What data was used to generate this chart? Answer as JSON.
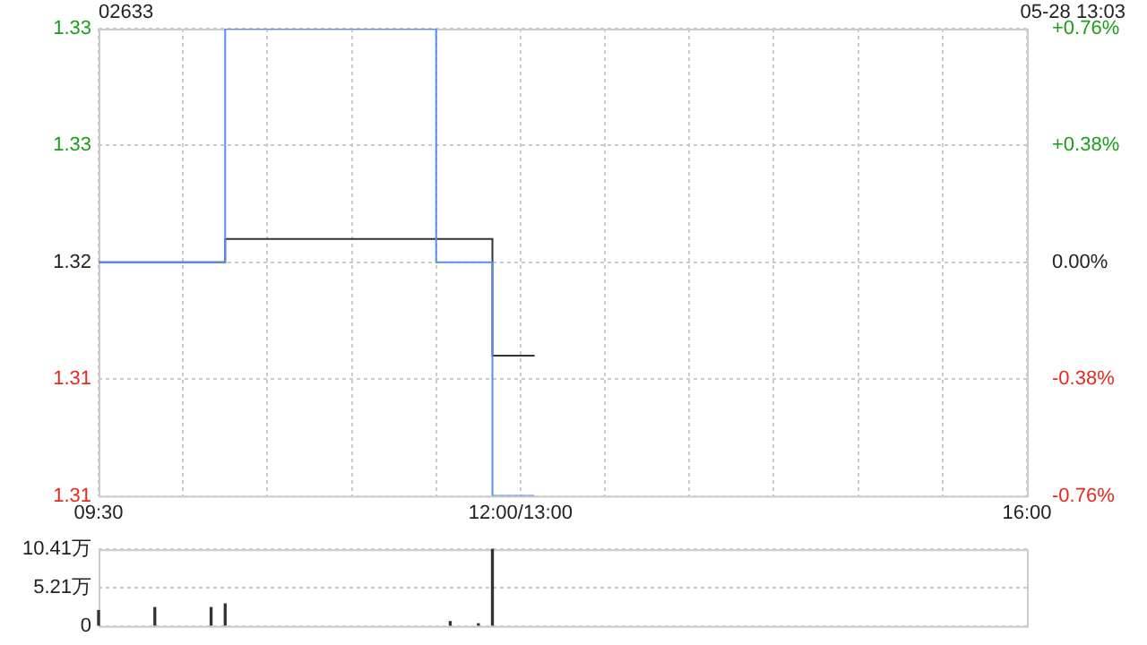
{
  "chart_data": [
    {
      "type": "step",
      "title": "02633",
      "annotations": [
        "05-28 13:03"
      ],
      "categories": [
        "09:30",
        null,
        null,
        null,
        null,
        null,
        null,
        null,
        null,
        null,
        null,
        null,
        null,
        null,
        null,
        null,
        null,
        null,
        null,
        null,
        null,
        null,
        null,
        null,
        null,
        null,
        null,
        null,
        null,
        null,
        "12:00/13:00",
        null,
        null,
        null,
        null,
        null,
        null,
        null,
        null,
        null,
        null,
        null,
        null,
        null,
        null,
        null,
        null,
        null,
        null,
        null,
        null,
        null,
        null,
        null,
        null,
        null,
        null,
        null,
        null,
        null,
        null,
        null,
        null,
        null,
        null,
        null,
        "16:00"
      ],
      "series": [
        {
          "color": "#5b8ee6",
          "values": [
            1.32,
            null,
            null,
            null,
            null,
            null,
            null,
            null,
            null,
            1.33,
            null,
            null,
            null,
            null,
            null,
            null,
            null,
            null,
            null,
            null,
            null,
            null,
            null,
            null,
            1.32,
            null,
            null,
            null,
            1.31,
            null,
            null,
            1.31,
            null,
            null,
            null,
            null,
            null,
            null,
            null,
            null,
            null,
            null,
            null,
            null,
            null,
            null,
            null,
            null,
            null,
            null,
            null,
            null,
            null,
            null,
            null,
            null,
            null,
            null,
            null,
            null,
            null,
            null,
            null,
            null,
            null,
            null,
            null
          ]
        },
        {
          "color": "#333333",
          "values": [
            1.32,
            null,
            null,
            null,
            null,
            null,
            null,
            null,
            null,
            1.321,
            null,
            null,
            null,
            null,
            null,
            null,
            null,
            null,
            null,
            null,
            null,
            null,
            null,
            null,
            null,
            null,
            null,
            null,
            1.316,
            null,
            null,
            1.316,
            null,
            null,
            null,
            null,
            null,
            null,
            null,
            null,
            null,
            null,
            null,
            null,
            null,
            null,
            null,
            null,
            null,
            null,
            null,
            null,
            null,
            null,
            null,
            null,
            null,
            null,
            null,
            null,
            null,
            null,
            null,
            null,
            null,
            null,
            null
          ]
        }
      ],
      "ylim": [
        1.31,
        1.33
      ],
      "yticks": [
        {
          "value": 1.31,
          "label": "1.31"
        },
        {
          "value": 1.315,
          "label": "1.31"
        },
        {
          "value": 1.32,
          "label": "1.32"
        },
        {
          "value": 1.325,
          "label": "1.33"
        },
        {
          "value": 1.33,
          "label": "1.33"
        }
      ],
      "y2lim": [
        -0.76,
        0.76
      ],
      "y2ticks": [
        {
          "value": -0.76,
          "label": "-0.76%"
        },
        {
          "value": -0.38,
          "label": "-0.38%"
        },
        {
          "value": 0,
          "label": "0.00%"
        },
        {
          "value": 0.38,
          "label": "+0.38%"
        },
        {
          "value": 0.76,
          "label": "+0.76%"
        }
      ],
      "grid": true
    },
    {
      "type": "bar",
      "categories": [
        null,
        null,
        null,
        null,
        null,
        null,
        null,
        null,
        null,
        null,
        null,
        null,
        null,
        null,
        null,
        null,
        null,
        null,
        null,
        null,
        null,
        null,
        null,
        null,
        null,
        null,
        null,
        null,
        null,
        null,
        null,
        null,
        null,
        null,
        null,
        null,
        null,
        null,
        null,
        null,
        null,
        null,
        null,
        null,
        null,
        null,
        null,
        null,
        null,
        null,
        null,
        null,
        null,
        null,
        null,
        null,
        null,
        null,
        null,
        null,
        null,
        null,
        null,
        null,
        null,
        null,
        null
      ],
      "values": [
        2.1,
        null,
        null,
        null,
        2.5,
        null,
        null,
        null,
        2.5,
        3.0,
        null,
        null,
        null,
        null,
        null,
        null,
        null,
        null,
        null,
        null,
        null,
        null,
        null,
        null,
        null,
        0.6,
        null,
        0.3,
        10.41,
        null,
        null,
        null,
        null,
        null,
        null,
        null,
        null,
        null,
        null,
        null,
        null,
        null,
        null,
        null,
        null,
        null,
        null,
        null,
        null,
        null,
        null,
        null,
        null,
        null,
        null,
        null,
        null,
        null,
        null,
        null,
        null,
        null,
        null,
        null,
        null,
        null,
        null
      ],
      "color": "#333333",
      "ylim": [
        0,
        10.41
      ],
      "yticks": [
        0,
        {
          "value": 5.21,
          "label": "5.21万"
        },
        {
          "value": 10.41,
          "label": "10.41万"
        }
      ],
      "grid": "y",
      "tick_labels": "y"
    }
  ]
}
